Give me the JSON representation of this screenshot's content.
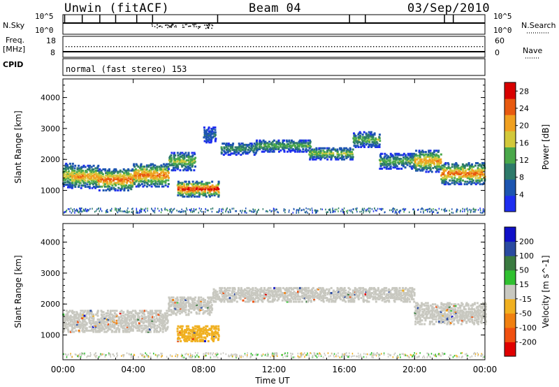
{
  "header": {
    "station": "Unwin (fitACF)",
    "beam": "Beam 04",
    "date": "03/Sep/2010"
  },
  "noise_panel": {
    "left_label": "N.Sky",
    "right_label": "N.Search",
    "left_ticks": [
      "10^5",
      "10^0"
    ],
    "right_ticks": [
      "10^5",
      "10^0"
    ]
  },
  "freq_panel": {
    "left_label_top": "Freq.",
    "left_label_unit": "[MHz]",
    "left_ticks": [
      "18",
      "8"
    ],
    "right_label": "Nave",
    "right_ticks": [
      "60",
      "0"
    ],
    "freq_mhz": 11,
    "nave": 26
  },
  "cpid_panel": {
    "label": "CPID",
    "mode_text": "normal (fast stereo) 153"
  },
  "chart_data": [
    {
      "type": "heatmap",
      "title": "",
      "xlabel": "Time UT",
      "ylabel": "Slant Range [km]",
      "xlim_hours": [
        0,
        24
      ],
      "ylim_km": [
        200,
        4600
      ],
      "x_ticks": [
        "00:00",
        "04:00",
        "08:00",
        "12:00",
        "16:00",
        "20:00",
        "00:00"
      ],
      "y_ticks": [
        1000,
        2000,
        3000,
        4000
      ],
      "colorbar": {
        "label": "Power [dB]",
        "ticks": [
          4,
          8,
          12,
          16,
          20,
          24,
          28
        ],
        "range": [
          0,
          30
        ],
        "colors": [
          "#1e2ef0",
          "#1d55b0",
          "#2d7a6a",
          "#4aa84a",
          "#d2c83a",
          "#f0a020",
          "#e85a10",
          "#d80000"
        ]
      },
      "bands": [
        {
          "t0": 0.0,
          "t1": 0.5,
          "center_km": 1500,
          "width_km": 800,
          "peak_db": 18
        },
        {
          "t0": 0.5,
          "t1": 2.0,
          "center_km": 1450,
          "width_km": 750,
          "peak_db": 22
        },
        {
          "t0": 2.0,
          "t1": 4.0,
          "center_km": 1350,
          "width_km": 700,
          "peak_db": 25
        },
        {
          "t0": 4.0,
          "t1": 6.0,
          "center_km": 1500,
          "width_km": 750,
          "peak_db": 24
        },
        {
          "t0": 6.0,
          "t1": 7.5,
          "center_km": 1950,
          "width_km": 600,
          "peak_db": 16
        },
        {
          "t0": 6.5,
          "t1": 8.8,
          "center_km": 1050,
          "width_km": 500,
          "peak_db": 28
        },
        {
          "t0": 8.0,
          "t1": 8.6,
          "center_km": 2800,
          "width_km": 500,
          "peak_db": 8
        },
        {
          "t0": 9.0,
          "t1": 11.0,
          "center_km": 2350,
          "width_km": 400,
          "peak_db": 12
        },
        {
          "t0": 11.0,
          "t1": 14.0,
          "center_km": 2450,
          "width_km": 400,
          "peak_db": 14
        },
        {
          "t0": 14.0,
          "t1": 16.5,
          "center_km": 2200,
          "width_km": 400,
          "peak_db": 16
        },
        {
          "t0": 16.5,
          "t1": 18.0,
          "center_km": 2650,
          "width_km": 500,
          "peak_db": 14
        },
        {
          "t0": 18.0,
          "t1": 20.0,
          "center_km": 1950,
          "width_km": 500,
          "peak_db": 14
        },
        {
          "t0": 20.0,
          "t1": 21.5,
          "center_km": 1950,
          "width_km": 700,
          "peak_db": 22
        },
        {
          "t0": 21.5,
          "t1": 24.0,
          "center_km": 1550,
          "width_km": 700,
          "peak_db": 24
        }
      ],
      "ground_scatter_km": [
        300,
        450
      ]
    },
    {
      "type": "heatmap",
      "title": "",
      "xlabel": "Time UT",
      "ylabel": "Slant Range [km]",
      "xlim_hours": [
        0,
        24
      ],
      "ylim_km": [
        200,
        4600
      ],
      "x_ticks": [
        "00:00",
        "04:00",
        "08:00",
        "12:00",
        "16:00",
        "20:00",
        "00:00"
      ],
      "y_ticks": [
        1000,
        2000,
        3000,
        4000
      ],
      "colorbar": {
        "label": "Velocity [m s^-1]",
        "ticks": [
          -200,
          -100,
          -50,
          -15,
          15,
          50,
          100,
          200
        ],
        "range": [
          -250,
          250
        ],
        "colors": [
          "#e00000",
          "#f05010",
          "#f08010",
          "#f0b020",
          "#c8c8c0",
          "#30c030",
          "#3a7a40",
          "#2a4aa0",
          "#1010c8"
        ]
      },
      "bands": [
        {
          "t0": 0.0,
          "t1": 6.0,
          "center_km": 1450,
          "width_km": 700,
          "vel": 0
        },
        {
          "t0": 6.0,
          "t1": 8.5,
          "center_km": 1950,
          "width_km": 600,
          "vel": 0
        },
        {
          "t0": 6.5,
          "t1": 8.8,
          "center_km": 1050,
          "width_km": 500,
          "vel": -40
        },
        {
          "t0": 8.5,
          "t1": 20.0,
          "center_km": 2300,
          "width_km": 450,
          "vel": 0
        },
        {
          "t0": 20.0,
          "t1": 24.0,
          "center_km": 1700,
          "width_km": 700,
          "vel": 0
        }
      ],
      "ground_scatter_km": [
        300,
        450
      ]
    }
  ]
}
